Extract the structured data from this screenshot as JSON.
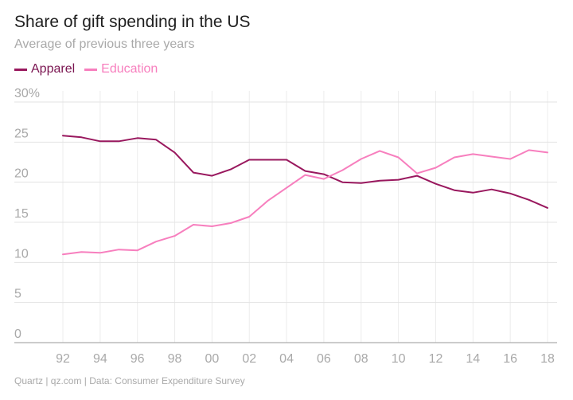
{
  "chart_data": {
    "type": "line",
    "title": "Share of gift spending in the US",
    "subtitle": "Average of previous three years",
    "source": "Quartz | qz.com | Data: Consumer Expenditure Survey",
    "x": [
      1992,
      1993,
      1994,
      1995,
      1996,
      1997,
      1998,
      1999,
      2000,
      2001,
      2002,
      2003,
      2004,
      2005,
      2006,
      2007,
      2008,
      2009,
      2010,
      2011,
      2012,
      2013,
      2014,
      2015,
      2016,
      2017,
      2018
    ],
    "xtick_values": [
      1992,
      1994,
      1996,
      1998,
      2000,
      2002,
      2004,
      2006,
      2008,
      2010,
      2012,
      2014,
      2016,
      2018
    ],
    "xtick_labels": [
      "92",
      "94",
      "96",
      "98",
      "00",
      "02",
      "04",
      "06",
      "08",
      "10",
      "12",
      "14",
      "16",
      "18"
    ],
    "ytick_values": [
      0,
      5,
      10,
      15,
      20,
      25,
      30
    ],
    "ytick_labels": [
      "0",
      "5",
      "10",
      "15",
      "20",
      "25",
      "30%"
    ],
    "ylim": [
      0,
      30
    ],
    "xlim": [
      1992,
      2018
    ],
    "grid": true,
    "legend_position": "top-left",
    "series": [
      {
        "name": "Apparel",
        "color": "#99185e",
        "values": [
          25.8,
          25.6,
          25.1,
          25.1,
          25.5,
          25.3,
          23.7,
          21.2,
          20.8,
          21.6,
          22.8,
          22.8,
          22.8,
          21.4,
          21.0,
          20.0,
          19.9,
          20.2,
          20.3,
          20.8,
          19.8,
          19.0,
          18.7,
          19.1,
          18.6,
          17.8,
          16.8
        ]
      },
      {
        "name": "Education",
        "color": "#f77fbe",
        "values": [
          11.0,
          11.3,
          11.2,
          11.6,
          11.5,
          12.6,
          13.3,
          14.7,
          14.5,
          14.9,
          15.7,
          17.7,
          19.3,
          20.9,
          20.4,
          21.5,
          22.9,
          23.9,
          23.1,
          21.1,
          21.8,
          23.1,
          23.5,
          23.2,
          22.9,
          24.0,
          23.7
        ]
      }
    ]
  }
}
